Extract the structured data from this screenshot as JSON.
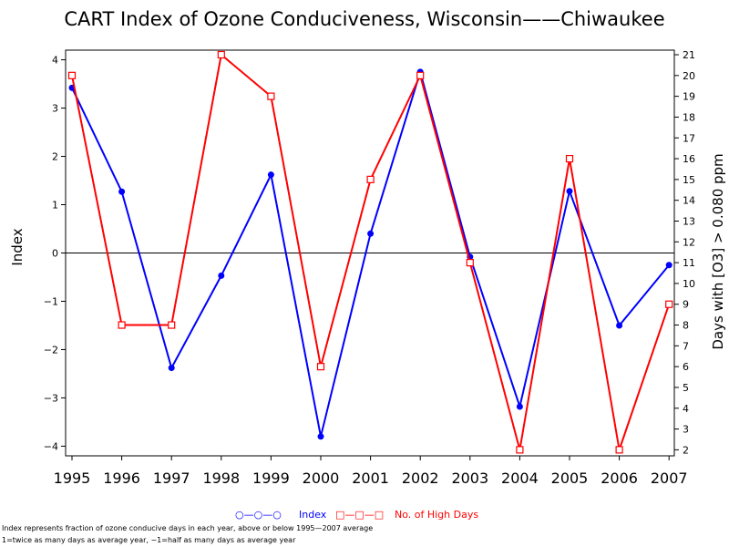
{
  "chart_data": {
    "type": "line",
    "title": "CART Index of Ozone Conduciveness, Wisconsin——Chiwaukee",
    "xlabel": "",
    "ylabel": "Index",
    "y2label": "Days with [O3] > 0.080 ppm",
    "categories": [
      "1995",
      "1996",
      "1997",
      "1998",
      "1999",
      "2000",
      "2001",
      "2002",
      "2003",
      "2004",
      "2005",
      "2006",
      "2007"
    ],
    "ylim": [
      -4.2,
      4.2
    ],
    "y_ticks": [
      -4,
      -3,
      -2,
      -1,
      0,
      1,
      2,
      3,
      4
    ],
    "y_tick_labels": [
      "−4",
      "−3",
      "−2",
      "−1",
      "0",
      "1",
      "2",
      "3",
      "4"
    ],
    "y2lim": [
      1.71,
      21.22
    ],
    "y2_ticks": [
      2,
      3,
      4,
      5,
      6,
      7,
      8,
      9,
      10,
      11,
      12,
      13,
      14,
      15,
      16,
      17,
      18,
      19,
      20,
      21
    ],
    "zero_line": true,
    "series": [
      {
        "name": "Index",
        "axis": "left",
        "color": "#0000ff",
        "marker": "filled-circle",
        "values": [
          3.42,
          1.27,
          -2.38,
          -0.47,
          1.62,
          -3.8,
          0.4,
          3.75,
          -0.08,
          -3.18,
          1.28,
          -1.5,
          -0.25
        ]
      },
      {
        "name": "No. of High Days",
        "axis": "right",
        "color": "#ff0000",
        "marker": "open-square",
        "values": [
          20,
          8,
          8,
          21,
          19,
          6,
          15,
          20,
          11,
          2,
          16,
          2,
          9
        ]
      }
    ],
    "legend": {
      "placement": "bottom-center",
      "index_symbol": "○—○—○",
      "index_label": "Index",
      "days_symbol": "□—□—□",
      "days_label": "No. of High Days"
    }
  },
  "footnotes": [
    "Index represents fraction of ozone conducive days in each year, above or below 1995—2007 average",
    "1=twice as many days as average year, −1=half as many days as average year"
  ]
}
